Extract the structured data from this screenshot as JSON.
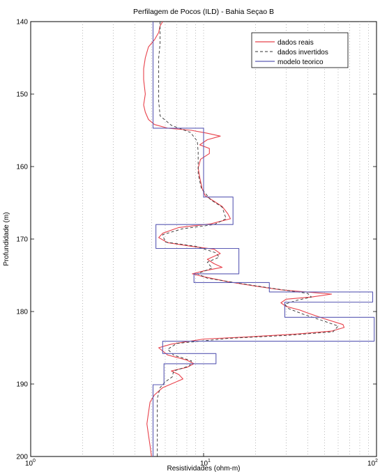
{
  "chart_data": {
    "type": "line",
    "title": "Perfilagem de Pocos (ILD) - Bahia  Seçao B",
    "xlabel": "Resistividades (ohm-m)",
    "ylabel": "Profundidade (m)",
    "xscale": "log",
    "xlim": [
      1,
      100
    ],
    "ylim": [
      140,
      200
    ],
    "y_inverted": true,
    "x_ticks": [
      {
        "value": 1,
        "base": "10",
        "exp": "0"
      },
      {
        "value": 10,
        "base": "10",
        "exp": "1"
      },
      {
        "value": 100,
        "base": "10",
        "exp": "2"
      }
    ],
    "y_ticks": [
      140,
      150,
      160,
      170,
      180,
      190,
      200
    ],
    "grid": "vertical-dotted",
    "legend_position": "top-right",
    "colors": {
      "real": "#e8404a",
      "inverted": "#333333",
      "model": "#5a5ab4"
    },
    "series": [
      {
        "name": "dados reais",
        "style": "solid",
        "color": "#e8404a",
        "points": [
          [
            5.8,
            140
          ],
          [
            5.6,
            140.6
          ],
          [
            5.5,
            141.5
          ],
          [
            5.2,
            142.5
          ],
          [
            4.8,
            143.5
          ],
          [
            4.6,
            145
          ],
          [
            4.5,
            146.5
          ],
          [
            4.5,
            148
          ],
          [
            4.6,
            150
          ],
          [
            4.5,
            151.5
          ],
          [
            4.6,
            152.5
          ],
          [
            4.8,
            153.5
          ],
          [
            5.2,
            154.2
          ],
          [
            6.2,
            154.7
          ],
          [
            8.5,
            155
          ],
          [
            10.5,
            155.4
          ],
          [
            12.5,
            155.8
          ],
          [
            10.5,
            156.3
          ],
          [
            9.5,
            157
          ],
          [
            10.8,
            157.5
          ],
          [
            10.8,
            158.2
          ],
          [
            9.6,
            159
          ],
          [
            9.3,
            160.2
          ],
          [
            9.5,
            161.5
          ],
          [
            9.8,
            163
          ],
          [
            10.2,
            164
          ],
          [
            11.5,
            164.8
          ],
          [
            12.8,
            165.5
          ],
          [
            13.8,
            166.5
          ],
          [
            14.3,
            167.2
          ],
          [
            11,
            167.9
          ],
          [
            7.2,
            168.4
          ],
          [
            5.8,
            169.2
          ],
          [
            5.5,
            169.8
          ],
          [
            6.2,
            170.5
          ],
          [
            8.5,
            171
          ],
          [
            11.5,
            171.4
          ],
          [
            12.5,
            172
          ],
          [
            10.5,
            172.8
          ],
          [
            11.5,
            173.4
          ],
          [
            12.8,
            173.9
          ],
          [
            10,
            174.4
          ],
          [
            8.6,
            174.8
          ],
          [
            10,
            175.2
          ],
          [
            14,
            175.9
          ],
          [
            20,
            176.5
          ],
          [
            28,
            177
          ],
          [
            35,
            177.2
          ],
          [
            55,
            177.6
          ],
          [
            42,
            178
          ],
          [
            30,
            178.3
          ],
          [
            28,
            178.8
          ],
          [
            30,
            179.3
          ],
          [
            36,
            179.8
          ],
          [
            40,
            180.2
          ],
          [
            50,
            181
          ],
          [
            64,
            181.8
          ],
          [
            65,
            182.2
          ],
          [
            55,
            182.7
          ],
          [
            35,
            183.1
          ],
          [
            18,
            183.5
          ],
          [
            10,
            183.8
          ],
          [
            6.5,
            184.5
          ],
          [
            5.5,
            185
          ],
          [
            6.2,
            186
          ],
          [
            8,
            186.7
          ],
          [
            8.8,
            187.2
          ],
          [
            8,
            187.7
          ],
          [
            6.5,
            188.2
          ],
          [
            7.2,
            188.7
          ],
          [
            7.6,
            189.3
          ],
          [
            6.5,
            190
          ],
          [
            5.8,
            190.5
          ],
          [
            5.2,
            191.5
          ],
          [
            4.9,
            192.5
          ],
          [
            4.8,
            194
          ],
          [
            4.7,
            195.5
          ],
          [
            4.8,
            197
          ],
          [
            4.9,
            198.5
          ],
          [
            5,
            200
          ]
        ]
      },
      {
        "name": "dados invertidos",
        "style": "dashed",
        "color": "#333333",
        "points": [
          [
            5.6,
            140
          ],
          [
            5.6,
            143
          ],
          [
            5.5,
            145
          ],
          [
            5.5,
            151
          ],
          [
            5.6,
            153
          ],
          [
            6.5,
            154.3
          ],
          [
            8.4,
            155.3
          ],
          [
            9.2,
            156.5
          ],
          [
            9.3,
            158
          ],
          [
            9.3,
            161
          ],
          [
            9.7,
            163
          ],
          [
            11,
            164.6
          ],
          [
            12.8,
            165.6
          ],
          [
            13.5,
            167.2
          ],
          [
            11.5,
            168
          ],
          [
            7.5,
            168.6
          ],
          [
            5.8,
            169.4
          ],
          [
            6,
            170.4
          ],
          [
            9,
            171
          ],
          [
            11.8,
            171.9
          ],
          [
            12.3,
            172.5
          ],
          [
            10.5,
            173.2
          ],
          [
            11.2,
            174
          ],
          [
            9.2,
            174.8
          ],
          [
            10.5,
            175.4
          ],
          [
            16,
            176.1
          ],
          [
            25,
            176.8
          ],
          [
            40,
            177.5
          ],
          [
            42,
            178
          ],
          [
            34,
            178.5
          ],
          [
            29.5,
            179
          ],
          [
            31,
            179.6
          ],
          [
            38,
            180.4
          ],
          [
            48,
            181.2
          ],
          [
            60,
            182
          ],
          [
            56,
            182.8
          ],
          [
            30,
            183.3
          ],
          [
            14,
            183.7
          ],
          [
            7,
            184.4
          ],
          [
            6.2,
            185.2
          ],
          [
            6.7,
            186
          ],
          [
            8.5,
            186.8
          ],
          [
            8.3,
            187.5
          ],
          [
            6.7,
            188.2
          ],
          [
            6.6,
            189
          ],
          [
            6,
            189.7
          ],
          [
            5.6,
            190.5
          ],
          [
            5.4,
            192
          ],
          [
            5.4,
            195
          ],
          [
            5.4,
            200
          ]
        ]
      },
      {
        "name": "modelo teorico",
        "style": "solid",
        "color": "#5a5ab4",
        "points": [
          [
            5.1,
            140
          ],
          [
            5.1,
            154.7
          ],
          [
            10,
            154.7
          ],
          [
            10,
            164.2
          ],
          [
            14.8,
            164.2
          ],
          [
            14.8,
            168
          ],
          [
            5.3,
            168
          ],
          [
            5.3,
            171.3
          ],
          [
            16,
            171.3
          ],
          [
            16,
            174.8
          ],
          [
            8.8,
            174.8
          ],
          [
            8.8,
            176
          ],
          [
            24,
            176
          ],
          [
            24,
            177.3
          ],
          [
            95,
            177.3
          ],
          [
            95,
            178.7
          ],
          [
            29.5,
            178.7
          ],
          [
            29.5,
            180.8
          ],
          [
            97,
            180.8
          ],
          [
            97,
            184.1
          ],
          [
            5.8,
            184.1
          ],
          [
            5.8,
            185.8
          ],
          [
            11.8,
            185.8
          ],
          [
            11.8,
            187.2
          ],
          [
            5.9,
            187.2
          ],
          [
            5.9,
            190.1
          ],
          [
            5.1,
            190.1
          ],
          [
            5.1,
            200
          ]
        ]
      }
    ]
  }
}
